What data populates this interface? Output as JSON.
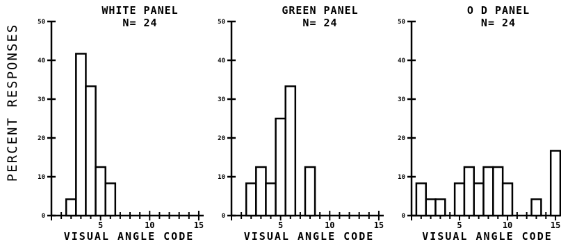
{
  "figure": {
    "ylabel": "PERCENT RESPONSES"
  },
  "chart_data": [
    {
      "type": "bar",
      "title": "WHITE PANEL",
      "subtitle": "N= 24",
      "xlabel": "VISUAL ANGLE CODE",
      "ylabel": "PERCENT RESPONSES",
      "xlim": [
        0,
        15.5
      ],
      "ylim": [
        0,
        50
      ],
      "xticks": [
        0,
        5,
        10,
        15
      ],
      "xtick_labels": [
        "",
        "5",
        "10",
        "15"
      ],
      "yticks": [
        0,
        10,
        20,
        30,
        40,
        50
      ],
      "ytick_labels": [
        "0",
        "10",
        "20",
        "30",
        "40",
        "50"
      ],
      "x": [
        2,
        3,
        4,
        5,
        6
      ],
      "values": [
        4.2,
        41.7,
        33.3,
        12.5,
        8.3
      ]
    },
    {
      "type": "bar",
      "title": "GREEN PANEL",
      "subtitle": "N= 24",
      "xlabel": "VISUAL ANGLE CODE",
      "ylabel": "PERCENT RESPONSES",
      "xlim": [
        0,
        15.5
      ],
      "ylim": [
        0,
        50
      ],
      "xticks": [
        0,
        5,
        10,
        15
      ],
      "xtick_labels": [
        "",
        "5",
        "10",
        "15"
      ],
      "yticks": [
        0,
        10,
        20,
        30,
        40,
        50
      ],
      "ytick_labels": [
        "0",
        "10",
        "20",
        "30",
        "40",
        "50"
      ],
      "x": [
        2,
        3,
        4,
        5,
        6,
        8
      ],
      "values": [
        8.3,
        12.5,
        8.3,
        25.0,
        33.3,
        12.5
      ]
    },
    {
      "type": "bar",
      "title": "O D PANEL",
      "subtitle": "N= 24",
      "xlabel": "VISUAL ANGLE CODE",
      "ylabel": "PERCENT RESPONSES",
      "xlim": [
        0,
        15.5
      ],
      "ylim": [
        0,
        50
      ],
      "xticks": [
        0,
        5,
        10,
        15
      ],
      "xtick_labels": [
        "",
        "5",
        "10",
        "15"
      ],
      "yticks": [
        0,
        10,
        20,
        30,
        40,
        50
      ],
      "ytick_labels": [
        "0",
        "10",
        "20",
        "30",
        "40",
        "50"
      ],
      "x": [
        1,
        2,
        3,
        5,
        6,
        7,
        8,
        9,
        10,
        13,
        15
      ],
      "values": [
        8.3,
        4.2,
        4.2,
        8.3,
        12.5,
        8.3,
        12.5,
        12.5,
        8.3,
        4.2,
        16.7
      ]
    }
  ]
}
